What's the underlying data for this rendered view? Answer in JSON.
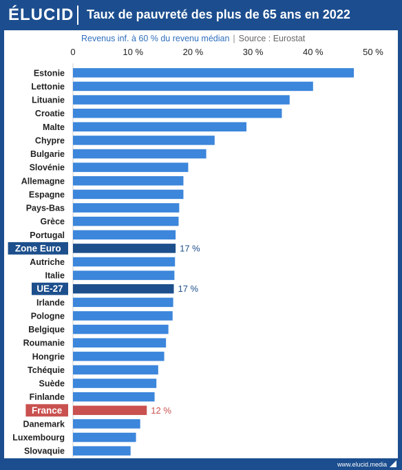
{
  "header": {
    "logo": "ÉLUCID",
    "title": "Taux de pauvreté des plus de 65 ans en 2022"
  },
  "subtitle": {
    "text": "Revenus inf. à 60 % du revenu médian",
    "separator": "|",
    "source": "Source : Eurostat"
  },
  "footer": {
    "url": "www.elucid.media"
  },
  "colors": {
    "bar": "#3c86db",
    "highlight_bar": "#1d4f8c",
    "france_bar": "#c9514f",
    "frame": "#1c4e8f"
  },
  "chart_data": {
    "type": "bar",
    "orientation": "horizontal",
    "title": "Taux de pauvreté des plus de 65 ans en 2022",
    "subtitle": "Revenus inf. à 60 % du revenu médian | Source : Eurostat",
    "xlim": [
      0,
      50
    ],
    "xticks": [
      0,
      10,
      20,
      30,
      40,
      50
    ],
    "xtick_labels": [
      "0",
      "10 %",
      "20 %",
      "30 %",
      "40 %",
      "50 %"
    ],
    "axis_position": "top",
    "grid": false,
    "categories": [
      "Estonie",
      "Lettonie",
      "Lituanie",
      "Croatie",
      "Malte",
      "Chypre",
      "Bulgarie",
      "Slovénie",
      "Allemagne",
      "Espagne",
      "Pays-Bas",
      "Grèce",
      "Portugal",
      "Zone Euro",
      "Autriche",
      "Italie",
      "UE-27",
      "Irlande",
      "Pologne",
      "Belgique",
      "Roumanie",
      "Hongrie",
      "Tchéquie",
      "Suède",
      "Finlande",
      "France",
      "Danemark",
      "Luxembourg",
      "Slovaquie"
    ],
    "values": [
      46.8,
      40.0,
      36.1,
      34.8,
      28.9,
      23.6,
      22.2,
      19.2,
      18.4,
      18.4,
      17.7,
      17.6,
      17.1,
      17.1,
      17.0,
      16.9,
      16.8,
      16.7,
      16.6,
      15.9,
      15.5,
      15.2,
      14.2,
      13.9,
      13.6,
      12.3,
      11.2,
      10.5,
      9.6
    ],
    "highlights": [
      {
        "category": "Zone Euro",
        "label": "17 %",
        "style": "highlight"
      },
      {
        "category": "UE-27",
        "label": "17 %",
        "style": "highlight"
      },
      {
        "category": "France",
        "label": "12 %",
        "style": "france"
      }
    ]
  }
}
